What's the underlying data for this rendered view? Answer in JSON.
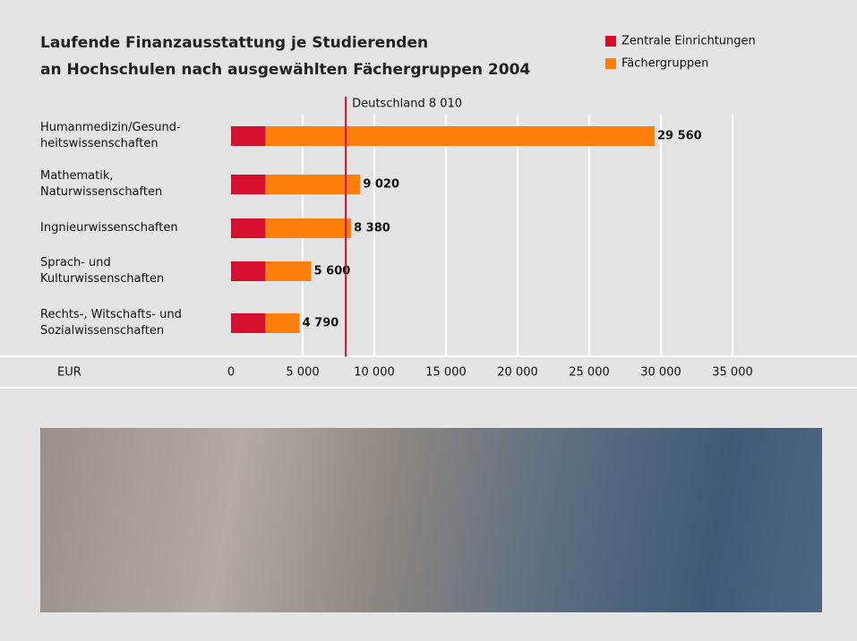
{
  "chart_data": {
    "type": "stacked-bar-horizontal",
    "title": "Laufende Finanzausstattung je Studierenden\nan Hochschulen nach ausgewählten Fächergruppen 2004",
    "categories": [
      "Humanmedizin/Gesund-\nheitswissenschaften",
      "Mathematik,\nNaturwissenschaften",
      "Ingnieurwissenschaften",
      "Sprach- und\nKulturwissenschaften",
      "Rechts-, Witschafts- und\nSozialwissenschaften"
    ],
    "series": [
      {
        "name": "Zentrale Einrichtungen",
        "color": "#d5102f",
        "values": [
          2400,
          2400,
          2400,
          2400,
          2400
        ]
      },
      {
        "name": "Fächergruppen",
        "color": "#ff7f0e",
        "values": [
          27160,
          6620,
          5980,
          3200,
          2390
        ]
      }
    ],
    "totals": [
      29560,
      9020,
      8380,
      5600,
      4790
    ],
    "total_labels": [
      "29 560",
      "9 020",
      "8 380",
      "5 600",
      "4 790"
    ],
    "reference_line": {
      "value": 8010,
      "label": "Deutschland 8 010",
      "color": "#c8102e"
    },
    "xlabel": "EUR",
    "xlim": [
      0,
      43500
    ],
    "xticks": [
      0,
      {
        "value": 5000,
        "label": "5 000"
      },
      {
        "value": 10000,
        "label": "10 000"
      },
      {
        "value": 15000,
        "label": "15 000"
      },
      {
        "value": 20000,
        "label": "20 000"
      },
      {
        "value": 25000,
        "label": "25 000"
      },
      {
        "value": 30000,
        "label": "30 000"
      },
      {
        "value": 35000,
        "label": "35 000"
      }
    ],
    "grid": true
  }
}
